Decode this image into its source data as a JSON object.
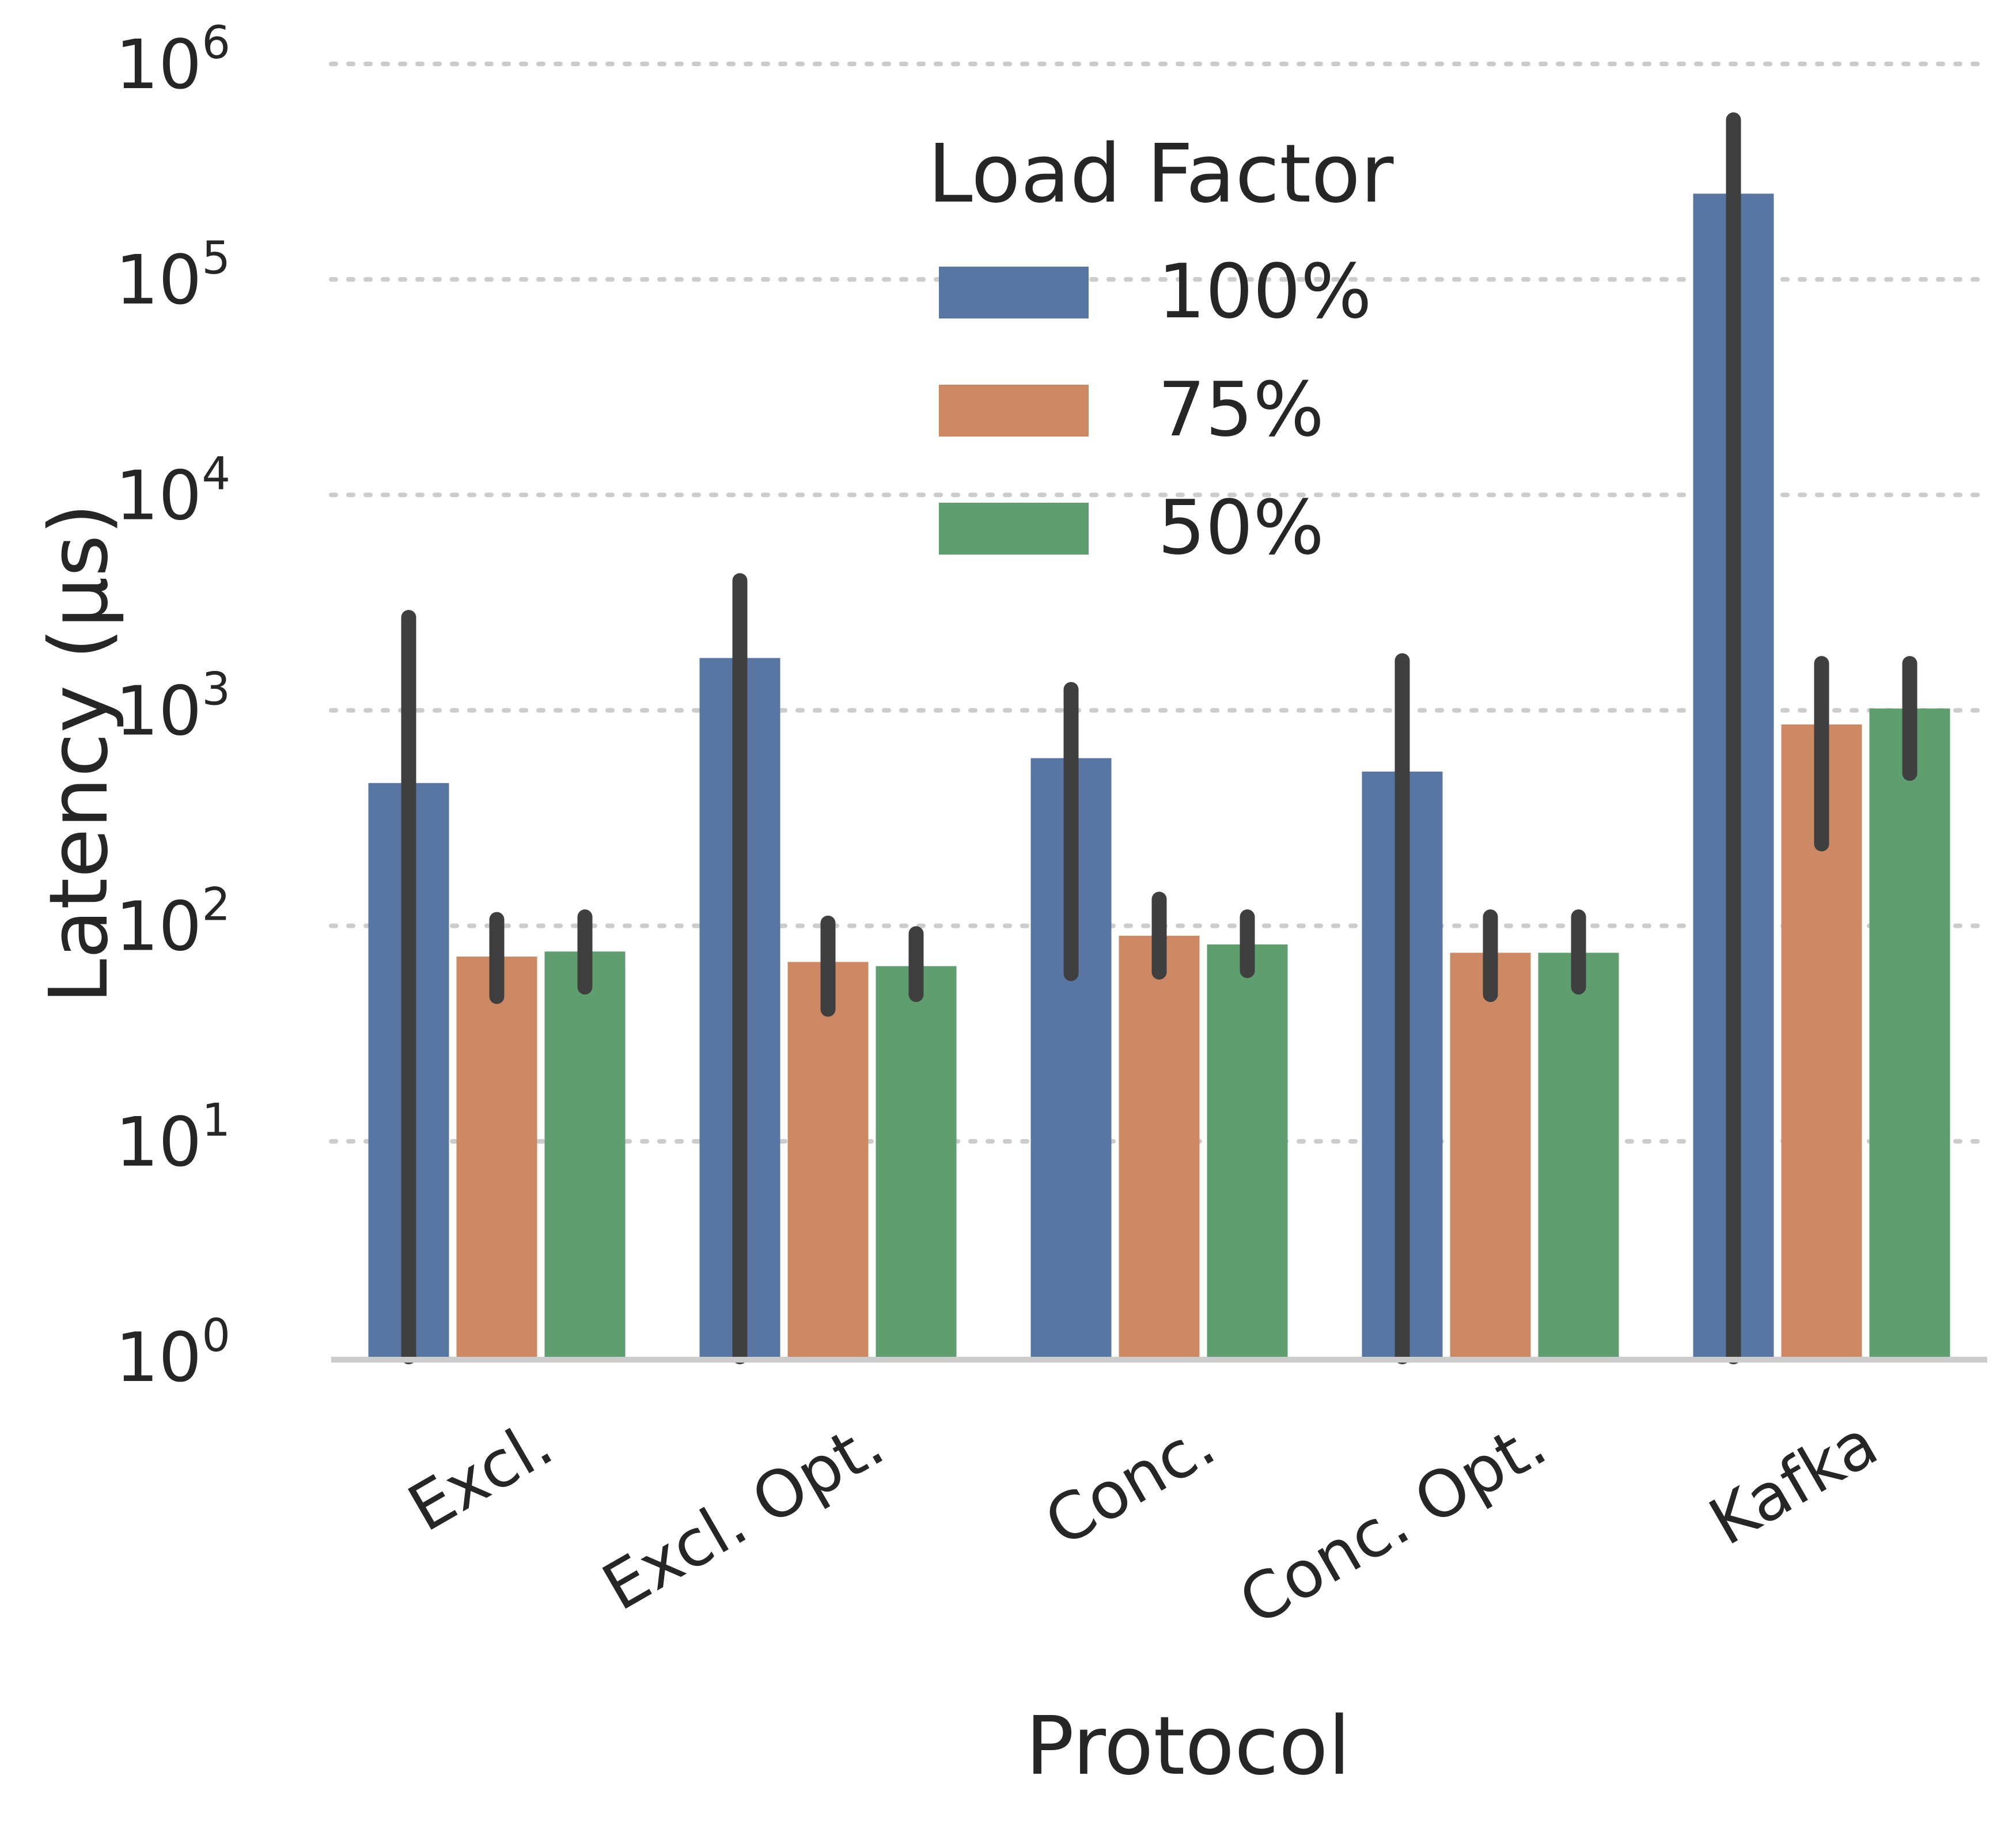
{
  "chart_data": {
    "type": "bar",
    "xlabel": "Protocol",
    "ylabel": "Latency (µs)",
    "yscale": "log",
    "ylim": [
      1,
      1000000
    ],
    "y_ticks": [
      {
        "value": 1,
        "base": "10",
        "exp": "0"
      },
      {
        "value": 10,
        "base": "10",
        "exp": "1"
      },
      {
        "value": 100,
        "base": "10",
        "exp": "2"
      },
      {
        "value": 1000,
        "base": "10",
        "exp": "3"
      },
      {
        "value": 10000,
        "base": "10",
        "exp": "4"
      },
      {
        "value": 100000,
        "base": "10",
        "exp": "5"
      },
      {
        "value": 1000000,
        "base": "10",
        "exp": "6"
      }
    ],
    "grid": "horizontal dotted",
    "categories": [
      "Excl.",
      "Excl. Opt.",
      "Conc.",
      "Conc. Opt.",
      "Kafka"
    ],
    "legend": {
      "title": "Load Factor",
      "placement": "top-center"
    },
    "series": [
      {
        "name": "100%",
        "color": "#5975a4",
        "values": [
          460,
          1750,
          600,
          520,
          250000
        ],
        "err_low": [
          1,
          1,
          60,
          1,
          1
        ],
        "err_high": [
          2700,
          4000,
          1250,
          1700,
          550000
        ]
      },
      {
        "name": "75%",
        "color": "#cc8963",
        "values": [
          72,
          68,
          90,
          75,
          860
        ],
        "err_low": [
          47,
          41,
          61,
          48,
          240
        ],
        "err_high": [
          107,
          103,
          133,
          110,
          1650
        ]
      },
      {
        "name": "50%",
        "color": "#5f9e6e",
        "values": [
          76,
          65,
          82,
          75,
          1020
        ],
        "err_low": [
          52,
          48,
          62,
          52,
          510
        ],
        "err_high": [
          110,
          92,
          110,
          110,
          1650
        ]
      }
    ]
  }
}
